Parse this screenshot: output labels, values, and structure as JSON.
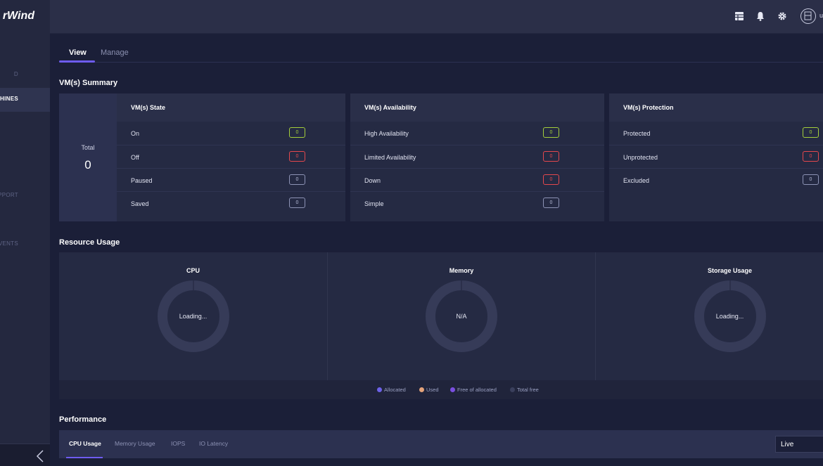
{
  "app": {
    "brand": "rWind"
  },
  "sidebar": {
    "items": [
      {
        "label": "D"
      },
      {
        "label": "ACHINES"
      },
      {
        "label": "& SUPPORT"
      },
      {
        "label": "EVENTS"
      }
    ]
  },
  "topbar": {
    "icons": [
      "table-icon",
      "bell-icon",
      "gear-icon"
    ],
    "user_initial": "u"
  },
  "tabs": [
    {
      "label": "View",
      "active": true
    },
    {
      "label": "Manage",
      "active": false
    }
  ],
  "vm_summary": {
    "title": "VM(s) Summary",
    "total_label": "Total",
    "total_value": "0",
    "state": {
      "title": "VM(s) State",
      "rows": [
        {
          "label": "On",
          "value": "0",
          "status": "green"
        },
        {
          "label": "Off",
          "value": "0",
          "status": "red"
        },
        {
          "label": "Paused",
          "value": "0",
          "status": "grey"
        },
        {
          "label": "Saved",
          "value": "0",
          "status": "grey"
        }
      ]
    },
    "availability": {
      "title": "VM(s) Availability",
      "rows": [
        {
          "label": "High Availability",
          "value": "0",
          "status": "green"
        },
        {
          "label": "Limited Availability",
          "value": "0",
          "status": "red"
        },
        {
          "label": "Down",
          "value": "0",
          "status": "red"
        },
        {
          "label": "Simple",
          "value": "0",
          "status": "grey"
        }
      ]
    },
    "protection": {
      "title": "VM(s) Protection",
      "rows": [
        {
          "label": "Protected",
          "value": "0",
          "status": "green"
        },
        {
          "label": "Unprotected",
          "value": "0",
          "status": "red"
        },
        {
          "label": "Excluded",
          "value": "0",
          "status": "grey"
        }
      ]
    }
  },
  "resource_usage": {
    "title": "Resource Usage",
    "panels": [
      {
        "title": "CPU",
        "center": "Loading..."
      },
      {
        "title": "Memory",
        "center": "N/A"
      },
      {
        "title": "Storage Usage",
        "center": "Loading..."
      }
    ],
    "legend": [
      {
        "label": "Allocated",
        "color": "#6d62e8"
      },
      {
        "label": "Used",
        "color": "#e4a37a"
      },
      {
        "label": "Free of allocated",
        "color": "#7a4fe0"
      },
      {
        "label": "Total free",
        "color": "#3a3f5c"
      }
    ]
  },
  "performance": {
    "title": "Performance",
    "tabs": [
      {
        "label": "CPU Usage",
        "active": true
      },
      {
        "label": "Memory Usage",
        "active": false
      },
      {
        "label": "IOPS",
        "active": false
      },
      {
        "label": "IO Latency",
        "active": false
      }
    ],
    "range_selected": "Live"
  }
}
